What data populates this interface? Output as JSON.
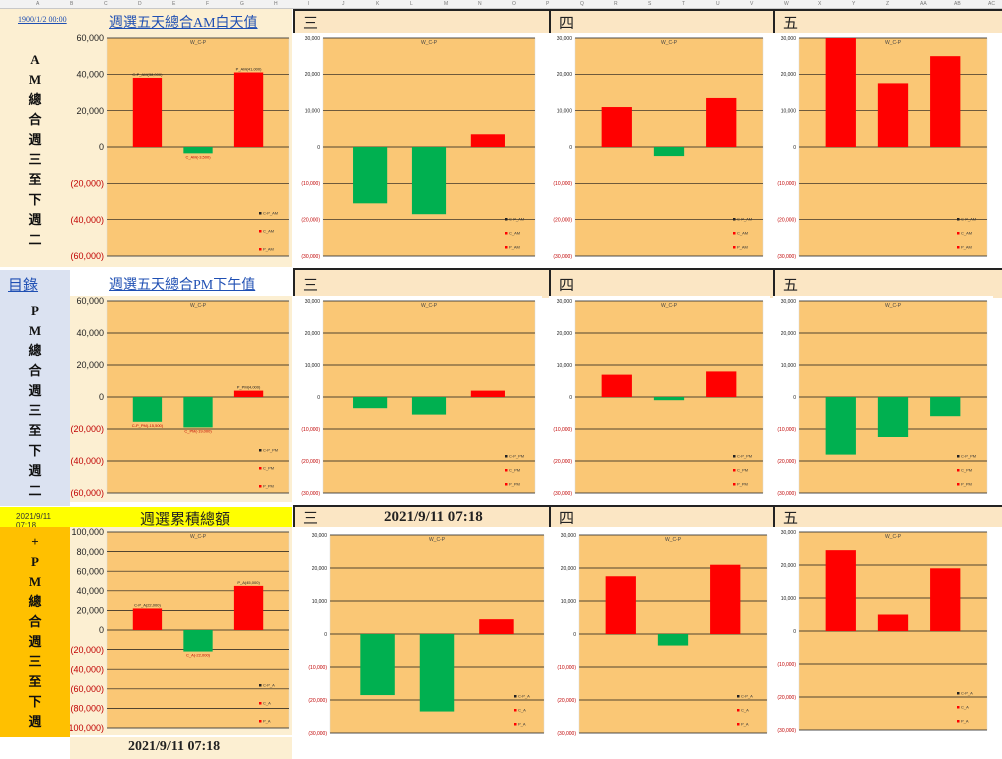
{
  "column_letters": [
    "A",
    "B",
    "C",
    "D",
    "E",
    "F",
    "G",
    "H",
    "I",
    "J",
    "K",
    "L",
    "M",
    "N",
    "O",
    "P",
    "Q",
    "R",
    "S",
    "T",
    "U",
    "V",
    "W",
    "X",
    "Y",
    "Z",
    "AA",
    "AB",
    "AC"
  ],
  "sections": {
    "am": {
      "corner_text": "1900/1/2 00:00",
      "title_link": "週選五天總合AM白天值",
      "vertical_title": [
        "A",
        "M",
        "總",
        "合",
        "週",
        "三",
        "至",
        "下",
        "週",
        "二"
      ],
      "day_headers": [
        "三",
        "四",
        "五"
      ]
    },
    "pm": {
      "corner_text": "目錄",
      "title_link": "週選五天總合PM下午值",
      "vertical_title": [
        "P",
        "M",
        "總",
        "合",
        "週",
        "三",
        "至",
        "下",
        "週",
        "二"
      ],
      "day_headers": [
        "三",
        "四",
        "五"
      ]
    },
    "total": {
      "corner_text": "2021/9/11 07:18",
      "title": "週選累積總額",
      "vertical_title": [
        "+",
        "P",
        "M",
        "總",
        "合",
        "週",
        "三",
        "至",
        "下",
        "週"
      ],
      "day_headers": [
        "三",
        "四",
        "五"
      ],
      "timestamp_center": "2021/9/11 07:18",
      "timestamp_bottom": "2021/9/11 07:18"
    }
  },
  "colors": {
    "positive": "#ff0000",
    "negative": "#00b050",
    "plot_bg": "#fac775",
    "section_am": "#fcefd2",
    "section_pm": "#dbe2f1",
    "section_total": "#ffc000",
    "banner": "#ffff00"
  },
  "chart_data": [
    {
      "id": "am-total",
      "type": "bar",
      "title": "W_C-P",
      "categories": [
        "C-P",
        "C",
        "P"
      ],
      "values": [
        38000,
        -3500,
        41000
      ],
      "ylim": [
        -60000,
        60000
      ],
      "yticks": [
        60000,
        40000,
        20000,
        0,
        -20000,
        -40000,
        -60000
      ],
      "tick_labels": [
        "60,000",
        "40,000",
        "20,000",
        "0",
        "(20,000)",
        "(40,000)",
        "(60,000)"
      ],
      "data_labels": [
        "C-P_AM(38,000)",
        "C_AM(-3,500)",
        "P_AM(41,000)"
      ],
      "legend": [
        "C-P_AM",
        "C_AM",
        "P_AM"
      ],
      "grid": true
    },
    {
      "id": "am-wed",
      "type": "bar",
      "title": "W_C-P",
      "categories": [
        "C-P",
        "C",
        "P"
      ],
      "values": [
        -15500,
        -18500,
        3500
      ],
      "ylim": [
        -30000,
        30000
      ],
      "yticks": [
        30000,
        20000,
        10000,
        0,
        -10000,
        -20000,
        -30000
      ],
      "tick_labels": [
        "30,000",
        "20,000",
        "10,000",
        "0",
        "(10,000)",
        "(20,000)",
        "(30,000)"
      ],
      "data_labels": [],
      "legend": [
        "C-P_AM",
        "C_AM",
        "P_AM"
      ],
      "grid": true
    },
    {
      "id": "am-thu",
      "type": "bar",
      "title": "W_C-P",
      "categories": [
        "C-P",
        "C",
        "P"
      ],
      "values": [
        11000,
        -2500,
        13500
      ],
      "ylim": [
        -30000,
        30000
      ],
      "yticks": [
        30000,
        20000,
        10000,
        0,
        -10000,
        -20000,
        -30000
      ],
      "tick_labels": [
        "30,000",
        "20,000",
        "10,000",
        "0",
        "(10,000)",
        "(20,000)",
        "(30,000)"
      ],
      "data_labels": [],
      "legend": [
        "C-P_AM",
        "C_AM",
        "P_AM"
      ],
      "grid": true
    },
    {
      "id": "am-fri",
      "type": "bar",
      "title": "W_C-P",
      "categories": [
        "C-P",
        "C",
        "P"
      ],
      "values": [
        30000,
        17500,
        25000
      ],
      "ylim": [
        -30000,
        30000
      ],
      "yticks": [
        30000,
        20000,
        10000,
        0,
        -10000,
        -20000,
        -30000
      ],
      "tick_labels": [
        "30,000",
        "20,000",
        "10,000",
        "0",
        "(10,000)",
        "(20,000)",
        "(30,000)"
      ],
      "data_labels": [],
      "legend": [
        "C-P_AM",
        "C_AM",
        "P_AM"
      ],
      "grid": true
    },
    {
      "id": "pm-total",
      "type": "bar",
      "title": "W_C-P",
      "categories": [
        "C-P",
        "C",
        "P"
      ],
      "values": [
        -15500,
        -19000,
        4000
      ],
      "ylim": [
        -60000,
        60000
      ],
      "yticks": [
        60000,
        40000,
        20000,
        0,
        -20000,
        -40000,
        -60000
      ],
      "tick_labels": [
        "60,000",
        "40,000",
        "20,000",
        "0",
        "(20,000)",
        "(40,000)",
        "(60,000)"
      ],
      "data_labels": [
        "C-P_PM(-15,500)",
        "C_PM(-19,000)",
        "P_PM(4,000)"
      ],
      "legend": [
        "C-P_PM",
        "C_PM",
        "P_PM"
      ],
      "grid": true
    },
    {
      "id": "pm-wed",
      "type": "bar",
      "title": "W_C-P",
      "categories": [
        "C-P",
        "C",
        "P"
      ],
      "values": [
        -3500,
        -5500,
        2000
      ],
      "ylim": [
        -30000,
        30000
      ],
      "yticks": [
        30000,
        20000,
        10000,
        0,
        -10000,
        -20000,
        -30000
      ],
      "tick_labels": [
        "30,000",
        "20,000",
        "10,000",
        "0",
        "(10,000)",
        "(20,000)",
        "(30,000)"
      ],
      "data_labels": [],
      "legend": [
        "C-P_PM",
        "C_PM",
        "P_PM"
      ],
      "grid": true
    },
    {
      "id": "pm-thu",
      "type": "bar",
      "title": "W_C-P",
      "categories": [
        "C-P",
        "C",
        "P"
      ],
      "values": [
        7000,
        -1000,
        8000
      ],
      "ylim": [
        -30000,
        30000
      ],
      "yticks": [
        30000,
        20000,
        10000,
        0,
        -10000,
        -20000,
        -30000
      ],
      "tick_labels": [
        "30,000",
        "20,000",
        "10,000",
        "0",
        "(10,000)",
        "(20,000)",
        "(30,000)"
      ],
      "data_labels": [],
      "legend": [
        "C-P_PM",
        "C_PM",
        "P_PM"
      ],
      "grid": true
    },
    {
      "id": "pm-fri",
      "type": "bar",
      "title": "W_C-P",
      "categories": [
        "C-P",
        "C",
        "P"
      ],
      "values": [
        -18000,
        -12500,
        -6000
      ],
      "ylim": [
        -30000,
        30000
      ],
      "yticks": [
        30000,
        20000,
        10000,
        0,
        -10000,
        -20000,
        -30000
      ],
      "tick_labels": [
        "30,000",
        "20,000",
        "10,000",
        "0",
        "(10,000)",
        "(20,000)",
        "(30,000)"
      ],
      "data_labels": [],
      "legend": [
        "C-P_PM",
        "C_PM",
        "P_PM"
      ],
      "grid": true
    },
    {
      "id": "total-total",
      "type": "bar",
      "title": "W_C-P",
      "categories": [
        "C-P",
        "C",
        "P"
      ],
      "values": [
        22000,
        -22000,
        45000
      ],
      "ylim": [
        -100000,
        100000
      ],
      "yticks": [
        100000,
        80000,
        60000,
        40000,
        20000,
        0,
        -20000,
        -40000,
        -60000,
        -80000,
        -100000
      ],
      "tick_labels": [
        "100,000",
        "80,000",
        "60,000",
        "40,000",
        "20,000",
        "0",
        "(20,000)",
        "(40,000)",
        "(60,000)",
        "(80,000)",
        "(100,000)"
      ],
      "data_labels": [
        "C-P_A(22,000)",
        "C_A(-22,000)",
        "P_A(45,000)"
      ],
      "legend": [
        "C-P_A",
        "C_A",
        "P_A"
      ],
      "grid": true
    },
    {
      "id": "total-wed",
      "type": "bar",
      "title": "W_C-P",
      "categories": [
        "C-P",
        "C",
        "P"
      ],
      "values": [
        -18500,
        -23500,
        4500
      ],
      "ylim": [
        -30000,
        30000
      ],
      "yticks": [
        30000,
        20000,
        10000,
        0,
        -10000,
        -20000,
        -30000
      ],
      "tick_labels": [
        "30,000",
        "20,000",
        "10,000",
        "0",
        "(10,000)",
        "(20,000)",
        "(30,000)"
      ],
      "data_labels": [],
      "legend": [
        "C-P_A",
        "C_A",
        "P_A"
      ],
      "grid": true
    },
    {
      "id": "total-thu",
      "type": "bar",
      "title": "W_C-P",
      "categories": [
        "C-P",
        "C",
        "P"
      ],
      "values": [
        17500,
        -3500,
        21000
      ],
      "ylim": [
        -30000,
        30000
      ],
      "yticks": [
        30000,
        20000,
        10000,
        0,
        -10000,
        -20000,
        -30000
      ],
      "tick_labels": [
        "30,000",
        "20,000",
        "10,000",
        "0",
        "(10,000)",
        "(20,000)",
        "(30,000)"
      ],
      "data_labels": [],
      "legend": [
        "C-P_A",
        "C_A",
        "P_A"
      ],
      "grid": true
    },
    {
      "id": "total-fri",
      "type": "bar",
      "title": "W_C-P",
      "categories": [
        "C-P",
        "C",
        "P"
      ],
      "values": [
        24500,
        5000,
        19000
      ],
      "ylim": [
        -30000,
        30000
      ],
      "yticks": [
        30000,
        20000,
        10000,
        0,
        -10000,
        -20000,
        -30000
      ],
      "tick_labels": [
        "30,000",
        "20,000",
        "10,000",
        "0",
        "(10,000)",
        "(20,000)",
        "(30,000)"
      ],
      "data_labels": [],
      "legend": [
        "C-P_A",
        "C_A",
        "P_A"
      ],
      "grid": true
    }
  ]
}
